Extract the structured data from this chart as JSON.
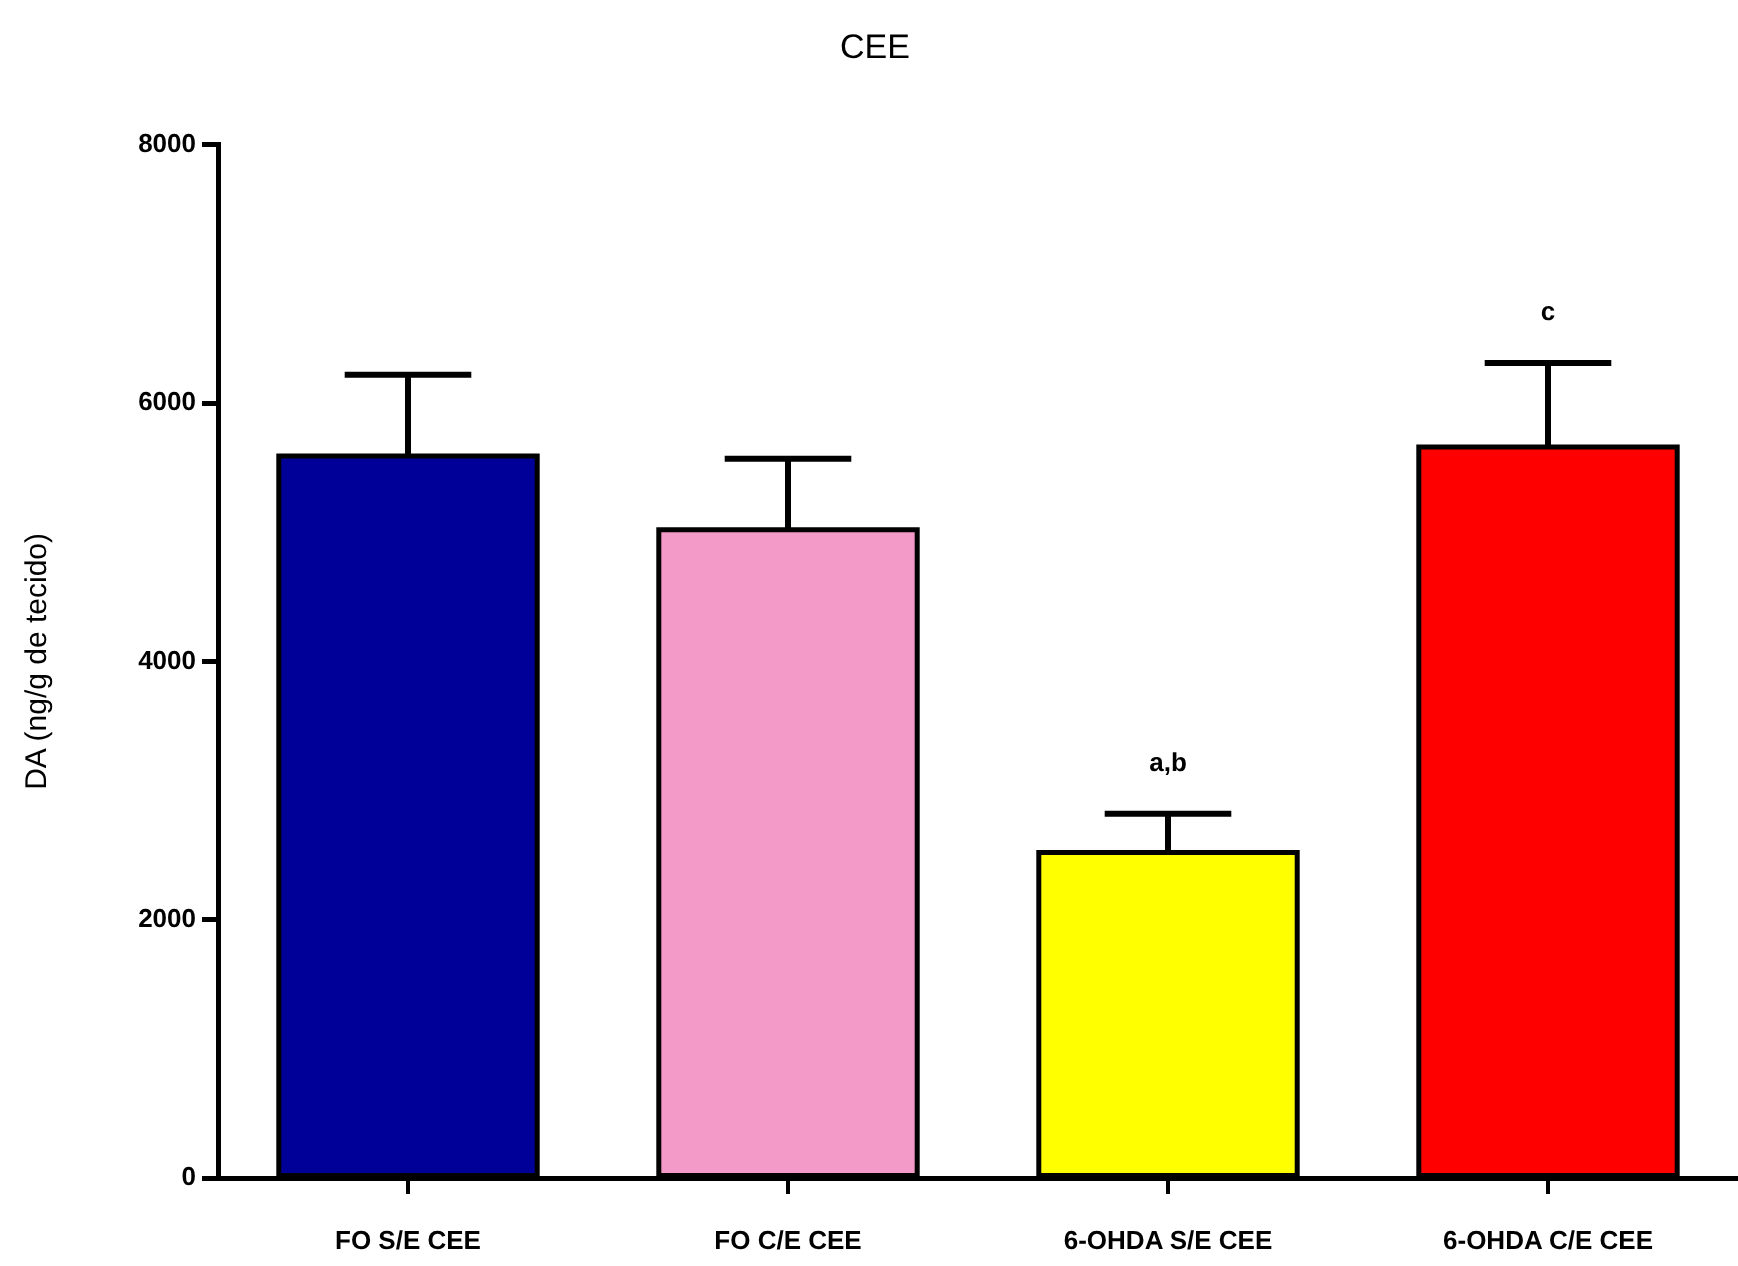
{
  "chart_data": {
    "type": "bar",
    "title": "CEE",
    "ylabel": "DA (ng/g de tecido)",
    "categories": [
      "FO S/E CEE",
      "FO C/E CEE",
      "6-OHDA S/E CEE",
      "6-OHDA C/E CEE"
    ],
    "values": [
      5590,
      5020,
      2520,
      5660
    ],
    "colors": [
      "#000099",
      "#f49ac8",
      "#ffff00",
      "#ff0000"
    ],
    "errors": [
      [
        5590,
        6220
      ],
      [
        5020,
        5570
      ],
      [
        2520,
        2820
      ],
      [
        5660,
        6310
      ]
    ],
    "ylim": [
      0,
      8000
    ],
    "yticks": [
      0,
      2000,
      4000,
      6000,
      8000
    ],
    "annotations": [
      {
        "text": "a,b",
        "x": "6-OHDA S/E CEE",
        "y": 2820
      },
      {
        "text": "c",
        "x": "6-OHDA C/E CEE",
        "y": 6310
      }
    ]
  }
}
